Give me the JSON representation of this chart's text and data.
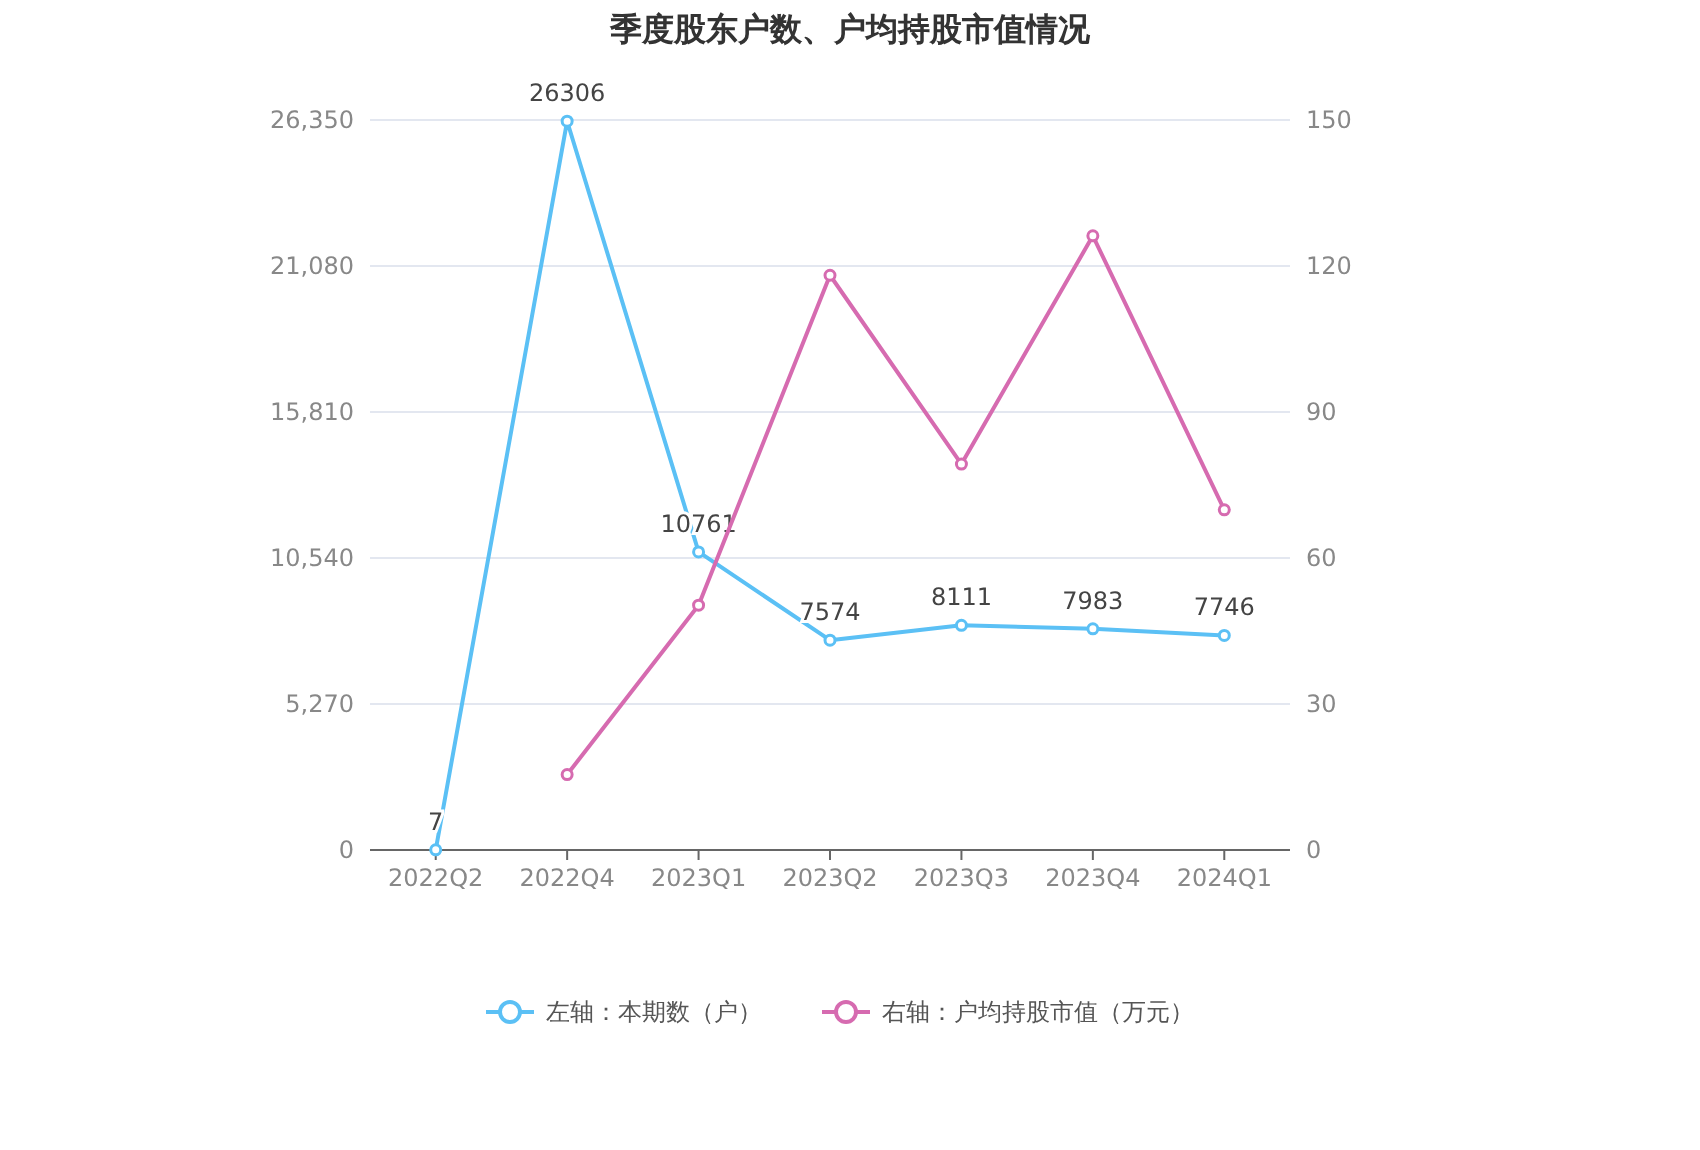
{
  "chart_data": {
    "type": "line",
    "title": "季度股东户数、户均持股市值情况",
    "categories": [
      "2022Q2",
      "2022Q4",
      "2023Q1",
      "2023Q2",
      "2023Q3",
      "2023Q4",
      "2024Q1"
    ],
    "series": [
      {
        "name": "左轴：本期数（户）",
        "color": "#5bc0f5",
        "values": [
          7,
          26306,
          10761,
          7574,
          8111,
          7983,
          7746
        ],
        "value_labels": [
          "7",
          "26306",
          "10761",
          "7574",
          "8111",
          "7983",
          "7746"
        ]
      },
      {
        "name": "右轴：户均持股市值（万元）",
        "color": "#d66bb0",
        "axis": "y2",
        "values": [
          null,
          15.5,
          50.3,
          118.1,
          79.3,
          126.2,
          69.9
        ]
      }
    ],
    "ylim": [
      0,
      26350
    ],
    "yticks": [
      0,
      {
        "value": 5270,
        "label": "5,270"
      },
      {
        "value": 10540,
        "label": "10,540"
      },
      {
        "value": 15810,
        "label": "15,810"
      },
      {
        "value": 21080,
        "label": "21,080"
      },
      {
        "value": 26350,
        "label": "26,350"
      }
    ],
    "y2lim": [
      0,
      150
    ],
    "y2ticks": [
      0,
      30,
      60,
      90,
      120,
      150
    ],
    "grid": "y",
    "marker": "circle",
    "legend": "bottom"
  }
}
